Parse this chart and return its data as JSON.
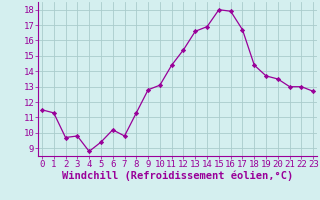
{
  "x": [
    0,
    1,
    2,
    3,
    4,
    5,
    6,
    7,
    8,
    9,
    10,
    11,
    12,
    13,
    14,
    15,
    16,
    17,
    18,
    19,
    20,
    21,
    22,
    23
  ],
  "y": [
    11.5,
    11.3,
    9.7,
    9.8,
    8.8,
    9.4,
    10.2,
    9.8,
    11.3,
    12.8,
    13.1,
    14.4,
    15.4,
    16.6,
    16.9,
    18.0,
    17.9,
    16.7,
    14.4,
    13.7,
    13.5,
    13.0,
    13.0,
    12.7
  ],
  "line_color": "#990099",
  "marker": "D",
  "marker_size": 2.2,
  "bg_color": "#d4efef",
  "grid_color": "#aacccc",
  "xlabel": "Windchill (Refroidissement éolien,°C)",
  "xlabel_color": "#990099",
  "xlabel_fontsize": 7.5,
  "tick_color": "#990099",
  "tick_fontsize": 6.5,
  "ylim": [
    8.5,
    18.5
  ],
  "yticks": [
    9,
    10,
    11,
    12,
    13,
    14,
    15,
    16,
    17,
    18
  ],
  "xticks": [
    0,
    1,
    2,
    3,
    4,
    5,
    6,
    7,
    8,
    9,
    10,
    11,
    12,
    13,
    14,
    15,
    16,
    17,
    18,
    19,
    20,
    21,
    22,
    23
  ],
  "xlim": [
    -0.3,
    23.3
  ]
}
